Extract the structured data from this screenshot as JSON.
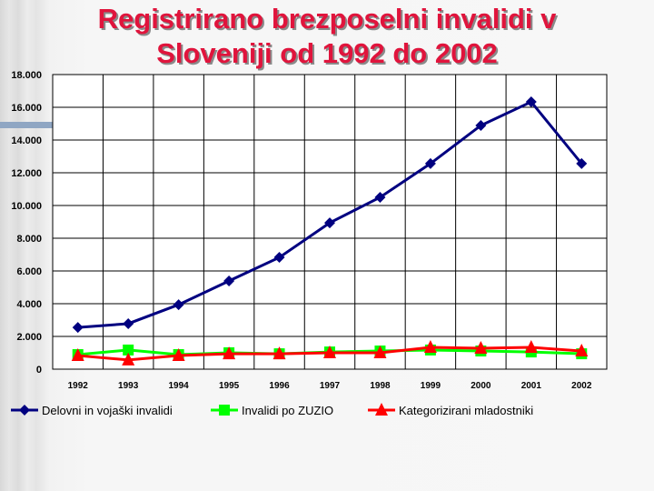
{
  "chart_data": {
    "type": "line",
    "title": "Registrirano brezposelni invalidi v Sloveniji od 1992 do 2002",
    "title_lines": [
      "Registrirano brezposelni invalidi v",
      "Sloveniji od 1992 do 2002"
    ],
    "categories": [
      "1992",
      "1993",
      "1994",
      "1995",
      "1996",
      "1997",
      "1998",
      "1999",
      "2000",
      "2001",
      "2002"
    ],
    "ylim": [
      0,
      18000
    ],
    "yticks": [
      0,
      2000,
      4000,
      6000,
      8000,
      10000,
      12000,
      14000,
      16000,
      18000
    ],
    "ytick_labels": [
      "0",
      "2.000",
      "4.000",
      "6.000",
      "8.000",
      "10.000",
      "12.000",
      "14.000",
      "16.000",
      "18.000"
    ],
    "grid": true,
    "legend": "bottom",
    "series": [
      {
        "name": "Delovni in vojaški invalidi",
        "color": "#000080",
        "marker": "diamond",
        "values": [
          2550,
          2780,
          3940,
          5390,
          6830,
          8940,
          10500,
          12560,
          14890,
          16330,
          12560
        ]
      },
      {
        "name": "Invalidi po ZUZIO",
        "color": "#00ff00",
        "marker": "square",
        "values": [
          890,
          1170,
          890,
          1000,
          940,
          1050,
          1110,
          1170,
          1110,
          1050,
          940
        ]
      },
      {
        "name": "Kategorizirani mladostniki",
        "color": "#ff0000",
        "marker": "triangle",
        "values": [
          830,
          560,
          830,
          940,
          940,
          1000,
          1000,
          1330,
          1280,
          1330,
          1110
        ]
      }
    ]
  }
}
